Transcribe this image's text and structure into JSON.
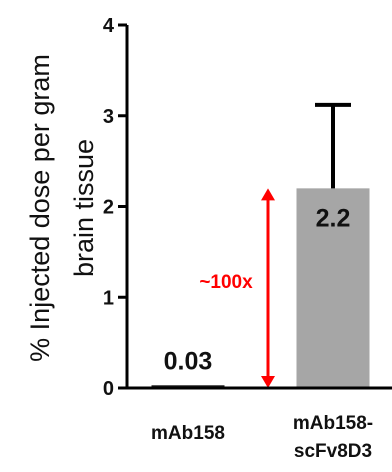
{
  "chart_data": {
    "type": "bar",
    "title": "",
    "xlabel": "",
    "ylabel": [
      "% Injected dose per gram",
      "brain tissue"
    ],
    "ylim": [
      0,
      4
    ],
    "yticks": [
      "0",
      "1",
      "2",
      "3",
      "4"
    ],
    "categories": [
      [
        "mAb158"
      ],
      [
        "mAb158-",
        "scFv8D3"
      ]
    ],
    "values": [
      0.03,
      2.2
    ],
    "error_upper": [
      null,
      3.12
    ],
    "data_labels": [
      "0.03",
      "2.2"
    ],
    "bar_colors": [
      "#1a1a1a",
      "#a6a6a6"
    ],
    "annotation": {
      "text": "~100x",
      "color": "#ff0000",
      "from": 0,
      "to": 2.2
    }
  }
}
